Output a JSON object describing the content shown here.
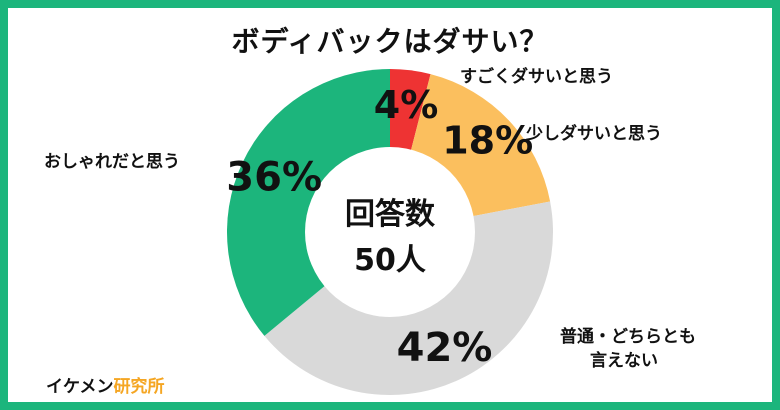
{
  "chart_data": {
    "type": "pie",
    "title": "ボディバックはダサい？",
    "center_label": "回答数",
    "center_value": "50人",
    "slices": [
      {
        "label": "すごくダサいと思う",
        "value": 4,
        "value_label": "4%",
        "color": "#ee3333"
      },
      {
        "label": "少しダサいと思う",
        "value": 18,
        "value_label": "18%",
        "color": "#fbbf5e"
      },
      {
        "label": "普通・どちらとも\n言えない",
        "value": 42,
        "value_label": "42%",
        "color": "#d9d9d9"
      },
      {
        "label": "おしゃれだと思う",
        "value": 36,
        "value_label": "36%",
        "color": "#1cb57c"
      }
    ]
  },
  "brand": {
    "part1": "イケメン",
    "part2": "研究所"
  },
  "colors": {
    "frame": "#1cb57c",
    "brand_accent": "#f5a623"
  }
}
